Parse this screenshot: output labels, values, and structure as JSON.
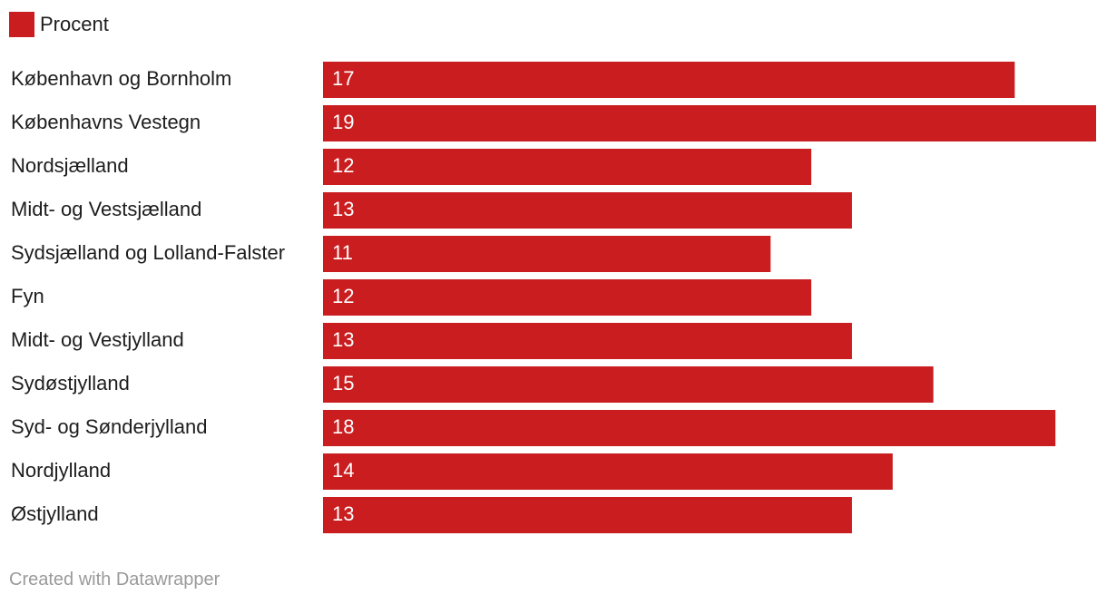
{
  "chart_data": {
    "type": "bar",
    "orientation": "horizontal",
    "categories": [
      "København og Bornholm",
      "Københavns Vestegn",
      "Nordsjælland",
      "Midt- og Vestsjælland",
      "Sydsjælland og Lolland-Falster",
      "Fyn",
      "Midt- og Vestjylland",
      "Sydøstjylland",
      "Syd- og Sønderjylland",
      "Nordjylland",
      "Østjylland"
    ],
    "series": [
      {
        "name": "Procent",
        "values": [
          17,
          19,
          12,
          13,
          11,
          12,
          13,
          15,
          18,
          14,
          13
        ]
      }
    ],
    "value_labels": [
      "17",
      "19",
      "12",
      "13",
      "11",
      "12",
      "13",
      "15",
      "18",
      "14",
      "13"
    ],
    "xlim": [
      0,
      19
    ],
    "bar_color": "#c91d1f",
    "grid": false,
    "legend": "top-left"
  },
  "footer": {
    "credit": "Created with Datawrapper"
  }
}
